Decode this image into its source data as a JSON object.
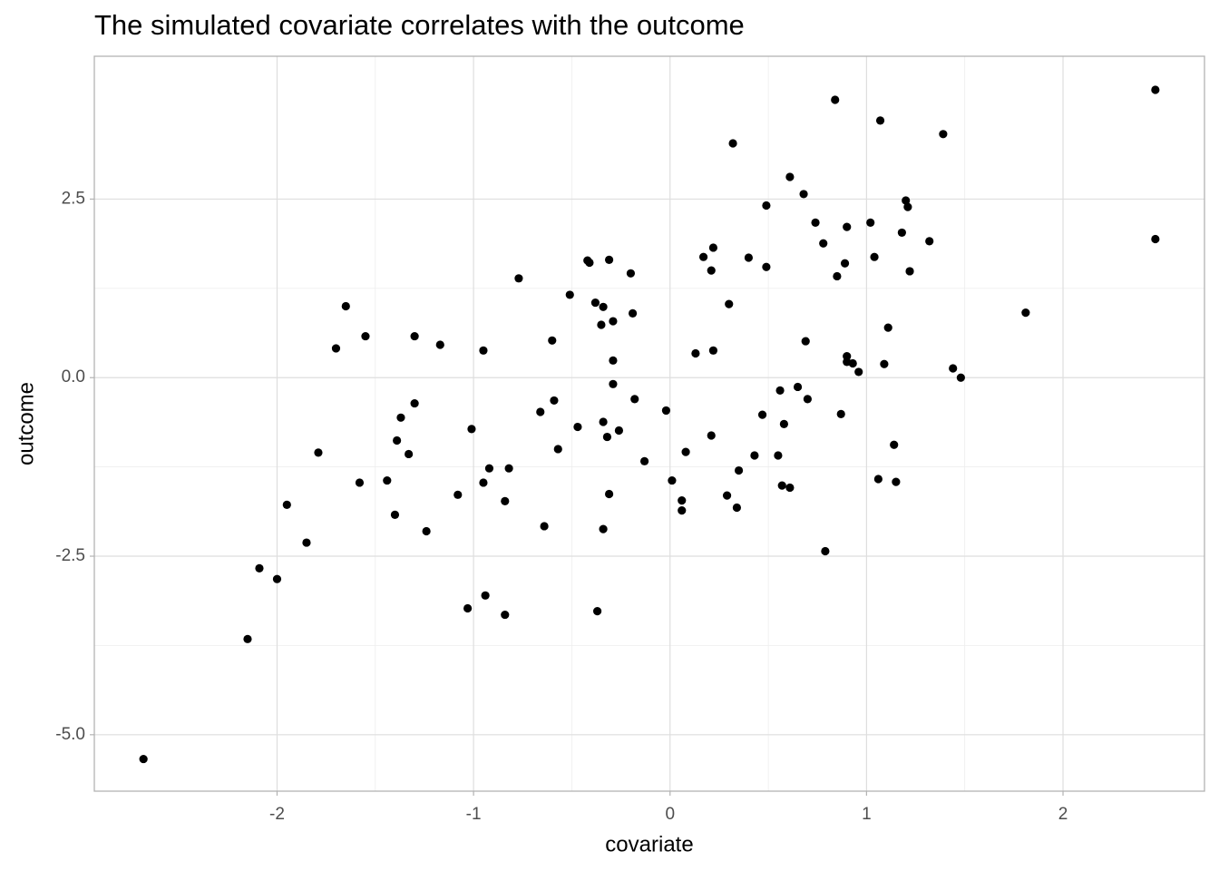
{
  "chart_data": {
    "type": "scatter",
    "title": "The simulated covariate correlates with the outcome",
    "x_label": "covariate",
    "y_label": "outcome",
    "color": "#000000",
    "grid": true,
    "xlim": [
      -2.93,
      2.72
    ],
    "ylim": [
      -5.79,
      4.5
    ],
    "xticks": [
      -2,
      -1,
      0,
      1,
      2
    ],
    "yticks": [
      {
        "value": -5,
        "label": "-5.0"
      },
      -2.5,
      {
        "value": 0,
        "label": "0.0"
      },
      2.5
    ],
    "x": [
      -2.68,
      -2.15,
      -2.09,
      -2.0,
      -1.95,
      -1.85,
      -1.79,
      -1.7,
      -1.65,
      -1.58,
      -1.55,
      -1.44,
      -1.4,
      -1.39,
      -1.37,
      -1.33,
      -1.3,
      -1.3,
      -1.24,
      -1.17,
      -1.08,
      -1.03,
      -1.01,
      -0.95,
      -0.95,
      -0.94,
      -0.92,
      -0.84,
      -0.84,
      -0.82,
      -0.77,
      -0.66,
      -0.64,
      -0.6,
      -0.59,
      -0.57,
      -0.51,
      -0.47,
      -0.42,
      -0.41,
      -0.38,
      -0.37,
      -0.35,
      -0.34,
      -0.34,
      -0.34,
      -0.32,
      -0.31,
      -0.31,
      -0.29,
      -0.29,
      -0.29,
      -0.26,
      -0.2,
      -0.19,
      -0.18,
      -0.13,
      -0.02,
      0.01,
      0.06,
      0.06,
      0.08,
      0.13,
      0.17,
      0.32,
      0.21,
      0.21,
      0.22,
      0.22,
      0.29,
      0.3,
      0.34,
      0.35,
      0.4,
      0.43,
      0.47,
      0.49,
      0.49,
      0.55,
      0.56,
      0.57,
      0.58,
      0.61,
      0.61,
      0.65,
      0.68,
      0.69,
      0.7,
      0.74,
      0.78,
      0.79,
      0.84,
      0.85,
      0.87,
      0.89,
      0.9,
      0.9,
      0.9,
      0.93,
      0.96,
      1.02,
      1.04,
      1.06,
      1.07,
      1.09,
      1.11,
      1.14,
      1.15,
      1.18,
      1.2,
      1.21,
      1.22,
      1.32,
      1.39,
      1.44,
      1.48,
      1.81,
      2.47,
      2.47
    ],
    "values": [
      -5.34,
      -3.66,
      -2.67,
      -2.82,
      -1.78,
      -2.31,
      -1.05,
      0.41,
      1.0,
      -1.47,
      0.58,
      -1.44,
      -1.92,
      -0.88,
      -0.56,
      -1.07,
      0.58,
      -0.36,
      -2.15,
      0.46,
      -1.64,
      -3.23,
      -0.72,
      -1.47,
      0.38,
      -3.05,
      -1.27,
      -1.73,
      -3.32,
      -1.27,
      1.39,
      -0.48,
      -2.08,
      0.52,
      -0.32,
      -1.0,
      1.16,
      -0.69,
      1.64,
      1.61,
      1.05,
      -3.27,
      0.74,
      -0.62,
      0.99,
      -2.12,
      -0.83,
      -1.63,
      1.65,
      0.24,
      0.79,
      -0.09,
      -0.74,
      1.46,
      0.9,
      -0.3,
      -1.17,
      -0.46,
      -1.44,
      -1.72,
      -1.86,
      -1.04,
      0.34,
      1.69,
      3.28,
      -0.81,
      1.5,
      1.82,
      0.38,
      -1.65,
      1.03,
      -1.82,
      -1.3,
      1.68,
      -1.09,
      -0.52,
      2.41,
      1.55,
      -1.09,
      -0.18,
      -1.51,
      -0.65,
      -1.54,
      2.81,
      -0.13,
      2.57,
      0.51,
      -0.3,
      2.17,
      1.88,
      -2.43,
      3.89,
      1.42,
      -0.51,
      1.6,
      0.3,
      2.11,
      0.22,
      0.2,
      0.08,
      2.17,
      1.69,
      -1.42,
      3.6,
      0.19,
      0.7,
      -0.94,
      -1.46,
      2.03,
      2.48,
      2.39,
      1.49,
      1.91,
      3.41,
      0.13,
      0.0,
      0.91,
      4.03,
      1.94
    ]
  }
}
